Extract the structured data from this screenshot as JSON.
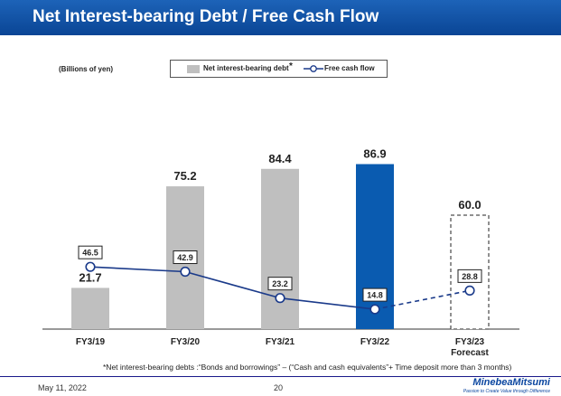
{
  "page": {
    "title": "Net Interest-bearing Debt / Free Cash Flow",
    "date": "May 11, 2022",
    "page_number": "20",
    "logo": "MinebeaMitsumi",
    "logo_tagline": "Passion to Create Value through Difference",
    "footnote": "*Net interest-bearing debts :“Bonds and borrowings” – (“Cash and cash equivalents”+ Time deposit more than 3 months)"
  },
  "chart_data": {
    "type": "bar",
    "unit_label": "(Billions of yen)",
    "categories": [
      "FY3/19",
      "FY3/20",
      "FY3/21",
      "FY3/22",
      "FY3/23\nForecast"
    ],
    "legend": {
      "bar_label": "Net interest-bearing debt",
      "bar_marker": "*",
      "line_label": "Free cash flow",
      "position": "top"
    },
    "series": [
      {
        "name": "Net interest-bearing debt",
        "type": "bar",
        "values": [
          21.7,
          75.2,
          84.4,
          86.9,
          60.0
        ],
        "value_labels": [
          "21.7",
          "75.2",
          "84.4",
          "86.9",
          "60.0"
        ],
        "styles": [
          "actual",
          "actual",
          "actual",
          "highlight",
          "forecast"
        ]
      },
      {
        "name": "Free cash flow",
        "type": "line",
        "values": [
          46.5,
          42.9,
          23.2,
          14.8,
          28.8
        ],
        "value_labels": [
          "46.5",
          "42.9",
          "23.2",
          "14.8",
          "28.8"
        ],
        "forecast_from_index": 4
      }
    ],
    "colors": {
      "bar": "#bfbfbf",
      "bar_highlight": "#0a5bb0",
      "line": "#1a3a8a",
      "title_bar": "#0a4a9e"
    },
    "grid": false,
    "axis_ticks_shown": false
  }
}
